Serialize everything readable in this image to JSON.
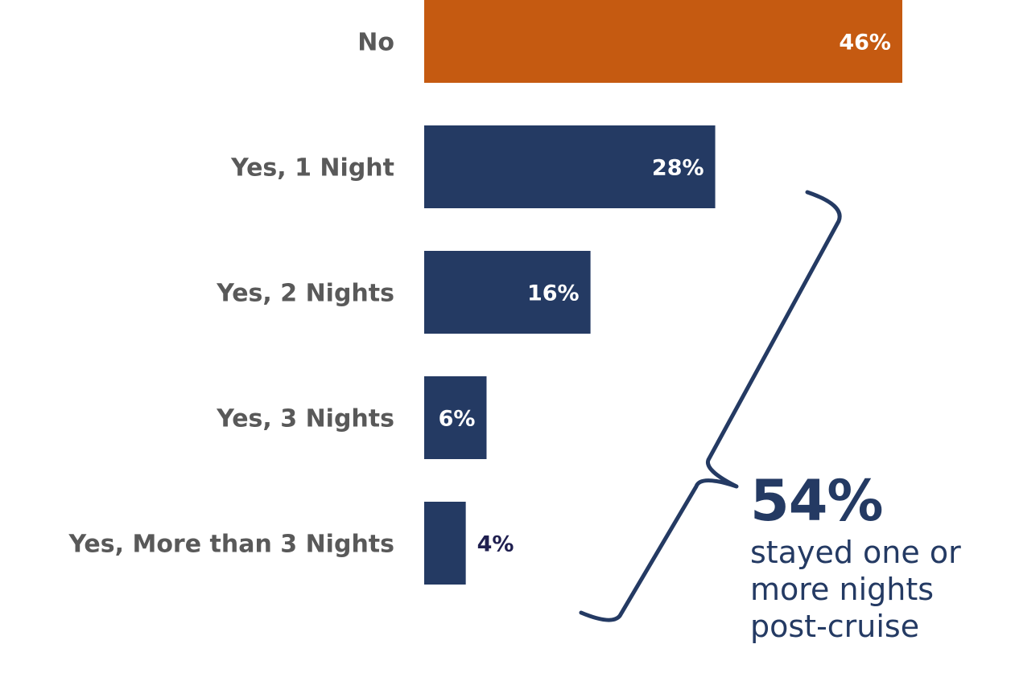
{
  "chart_data": {
    "type": "bar",
    "orientation": "horizontal",
    "categories": [
      "No",
      "Yes, 1 Night",
      "Yes, 2 Nights",
      "Yes, 3 Nights",
      "Yes, More than 3 Nights"
    ],
    "values": [
      46,
      28,
      16,
      6,
      4
    ],
    "value_labels": [
      "46%",
      "28%",
      "16%",
      "6%",
      "4%"
    ],
    "unit": "%",
    "bar_colors": [
      "#c55a11",
      "#243a63",
      "#243a63",
      "#243a63",
      "#243a63"
    ],
    "xlim": [
      0,
      46
    ],
    "grid": false,
    "legend": "none"
  },
  "callout": {
    "value": "54%",
    "text": "stayed one or\nmore nights\npost-cruise",
    "color": "#243a63"
  }
}
